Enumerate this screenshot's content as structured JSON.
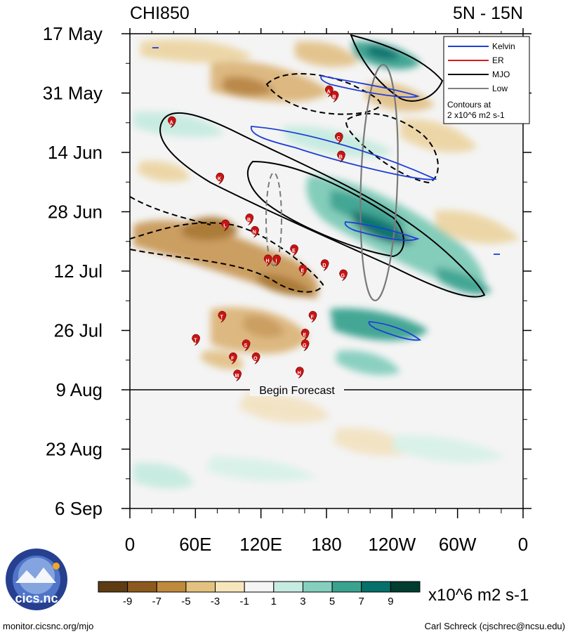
{
  "chart_data": {
    "type": "heatmap",
    "title_left": "CHI850",
    "title_right": "5N - 15N",
    "y_dates": [
      "17 May",
      "31 May",
      "14 Jun",
      "28 Jun",
      "12 Jul",
      "26 Jul",
      "9 Aug",
      "23 Aug",
      "6 Sep"
    ],
    "x_longitudes": [
      "0",
      "60E",
      "120E",
      "180",
      "120W",
      "60W",
      "0"
    ],
    "x_range_deg_east": [
      0,
      360
    ],
    "forecast_label": "Begin Forecast",
    "forecast_start": "9 Aug",
    "colorbar": {
      "ticks": [
        "-9",
        "-7",
        "-5",
        "-3",
        "-1",
        "1",
        "3",
        "5",
        "7",
        "9"
      ],
      "colors": [
        "#5e3c13",
        "#8c5a1c",
        "#bf8a3c",
        "#e3c280",
        "#f7e6bc",
        "#f5f5f5",
        "#c6ebe0",
        "#85cfbf",
        "#3aa390",
        "#06706a",
        "#003c30"
      ],
      "units": "x10^6 m2 s-1"
    },
    "legend": [
      {
        "label": "Kelvin",
        "color": "#1f3fd6"
      },
      {
        "label": "ER",
        "color": "#e01818"
      },
      {
        "label": "MJO",
        "color": "#000000"
      },
      {
        "label": "Low",
        "color": "#808080"
      }
    ],
    "contour_note_1": "Contours at",
    "contour_note_2": "2 x10^6 m2 s-1",
    "storms": [
      {
        "letter": "A",
        "lon": 182,
        "date_index": 0.97
      },
      {
        "letter": "B",
        "lon": 187,
        "date_index": 1.06
      },
      {
        "letter": "A",
        "lon": 38,
        "date_index": 1.49
      },
      {
        "letter": "C",
        "lon": 191,
        "date_index": 1.76
      },
      {
        "letter": "B",
        "lon": 193,
        "date_index": 2.07
      },
      {
        "letter": "K",
        "lon": 82,
        "date_index": 2.44
      },
      {
        "letter": "B",
        "lon": 109,
        "date_index": 3.13
      },
      {
        "letter": "L",
        "lon": 87,
        "date_index": 3.23
      },
      {
        "letter": "N",
        "lon": 114,
        "date_index": 3.34
      },
      {
        "letter": "E",
        "lon": 150,
        "date_index": 3.65
      },
      {
        "letter": "H",
        "lon": 126,
        "date_index": 3.82
      },
      {
        "letter": "I",
        "lon": 134,
        "date_index": 3.82
      },
      {
        "letter": "D",
        "lon": 178,
        "date_index": 3.9
      },
      {
        "letter": "E",
        "lon": 158,
        "date_index": 3.99
      },
      {
        "letter": "G",
        "lon": 195,
        "date_index": 4.07
      },
      {
        "letter": "T",
        "lon": 84,
        "date_index": 4.77
      },
      {
        "letter": "F",
        "lon": 167,
        "date_index": 4.77
      },
      {
        "letter": "E",
        "lon": 160,
        "date_index": 5.07
      },
      {
        "letter": "T",
        "lon": 60,
        "date_index": 5.16
      },
      {
        "letter": "G",
        "lon": 160,
        "date_index": 5.25
      },
      {
        "letter": "S",
        "lon": 106,
        "date_index": 5.25
      },
      {
        "letter": "F",
        "lon": 94,
        "date_index": 5.47
      },
      {
        "letter": "O",
        "lon": 115,
        "date_index": 5.47
      },
      {
        "letter": "M",
        "lon": 98,
        "date_index": 5.76
      },
      {
        "letter": "H",
        "lon": 155,
        "date_index": 5.71
      }
    ]
  },
  "footer": {
    "logo_text": "cics.nc",
    "logo_ring": "Cooperative Institute for Climate and Satellites",
    "left": "monitor.cicsnc.org/mjo",
    "right": "Carl Schreck (cjschrec@ncsu.edu)"
  }
}
